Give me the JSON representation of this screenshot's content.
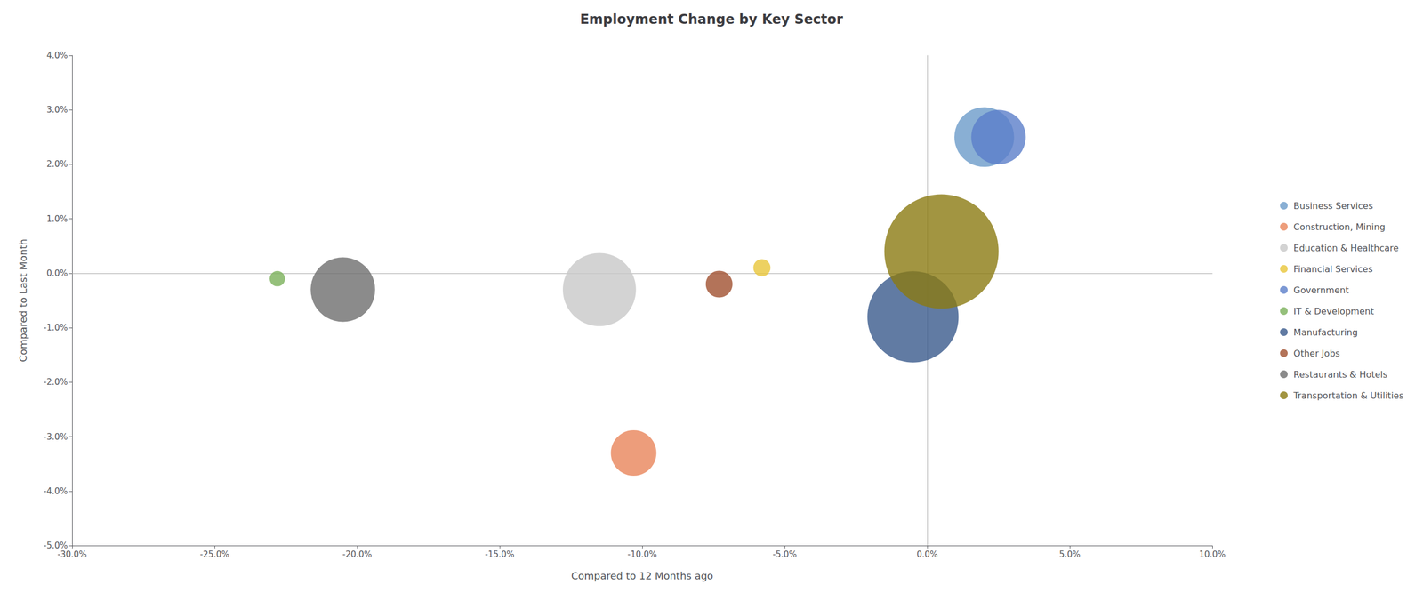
{
  "chart_data": {
    "type": "scatter",
    "title": "Employment Change by Key Sector",
    "xlabel": "Compared to 12 Months ago",
    "ylabel": "Compared to Last Month",
    "xlim": [
      -0.3,
      0.1
    ],
    "ylim": [
      -0.05,
      0.04
    ],
    "xticks": [
      {
        "value": -0.3,
        "label": "-30.0%"
      },
      {
        "value": -0.25,
        "label": "-25.0%"
      },
      {
        "value": -0.2,
        "label": "-20.0%"
      },
      {
        "value": -0.15,
        "label": "-15.0%"
      },
      {
        "value": -0.1,
        "label": "-10.0%"
      },
      {
        "value": -0.05,
        "label": "-5.0%"
      },
      {
        "value": 0.0,
        "label": "0.0%"
      },
      {
        "value": 0.05,
        "label": "5.0%"
      },
      {
        "value": 0.1,
        "label": "10.0%"
      }
    ],
    "yticks": [
      {
        "value": -0.05,
        "label": "-5.0%"
      },
      {
        "value": -0.04,
        "label": "-4.0%"
      },
      {
        "value": -0.03,
        "label": "-3.0%"
      },
      {
        "value": -0.02,
        "label": "-2.0%"
      },
      {
        "value": -0.01,
        "label": "-1.0%"
      },
      {
        "value": 0.0,
        "label": "0.0%"
      },
      {
        "value": 0.01,
        "label": "1.0%"
      },
      {
        "value": 0.02,
        "label": "2.0%"
      },
      {
        "value": 0.03,
        "label": "3.0%"
      },
      {
        "value": 0.04,
        "label": "4.0%"
      }
    ],
    "grid": false,
    "legend": "right",
    "series": [
      {
        "name": "Business Services",
        "color": "#6b9bc9",
        "x": [
          0.02
        ],
        "values": [
          0.025
        ],
        "size": [
          6000
        ]
      },
      {
        "name": "Construction, Mining",
        "color": "#e8855a",
        "x": [
          -0.103
        ],
        "values": [
          -0.033
        ],
        "size": [
          3500
        ]
      },
      {
        "name": "Education & Healthcare",
        "color": "#c8c8c8",
        "x": [
          -0.115
        ],
        "values": [
          -0.003
        ],
        "size": [
          9000
        ]
      },
      {
        "name": "Financial Services",
        "color": "#e8c53a",
        "x": [
          -0.058
        ],
        "values": [
          0.001
        ],
        "size": [
          500
        ]
      },
      {
        "name": "Government",
        "color": "#5b7ec9",
        "x": [
          0.025
        ],
        "values": [
          0.025
        ],
        "size": [
          5000
        ]
      },
      {
        "name": "IT & Development",
        "color": "#7bb05a",
        "x": [
          -0.228
        ],
        "values": [
          -0.001
        ],
        "size": [
          400
        ]
      },
      {
        "name": "Manufacturing",
        "color": "#3a5a8c",
        "x": [
          -0.005
        ],
        "values": [
          -0.008
        ],
        "size": [
          14000
        ]
      },
      {
        "name": "Other Jobs",
        "color": "#a05030",
        "x": [
          -0.073
        ],
        "values": [
          -0.002
        ],
        "size": [
          1200
        ]
      },
      {
        "name": "Restaurants & Hotels",
        "color": "#6e6e6e",
        "x": [
          -0.205
        ],
        "values": [
          -0.003
        ],
        "size": [
          7000
        ]
      },
      {
        "name": "Transportation & Utilities",
        "color": "#8b7a12",
        "x": [
          0.005
        ],
        "values": [
          0.004
        ],
        "size": [
          22000
        ]
      }
    ]
  }
}
